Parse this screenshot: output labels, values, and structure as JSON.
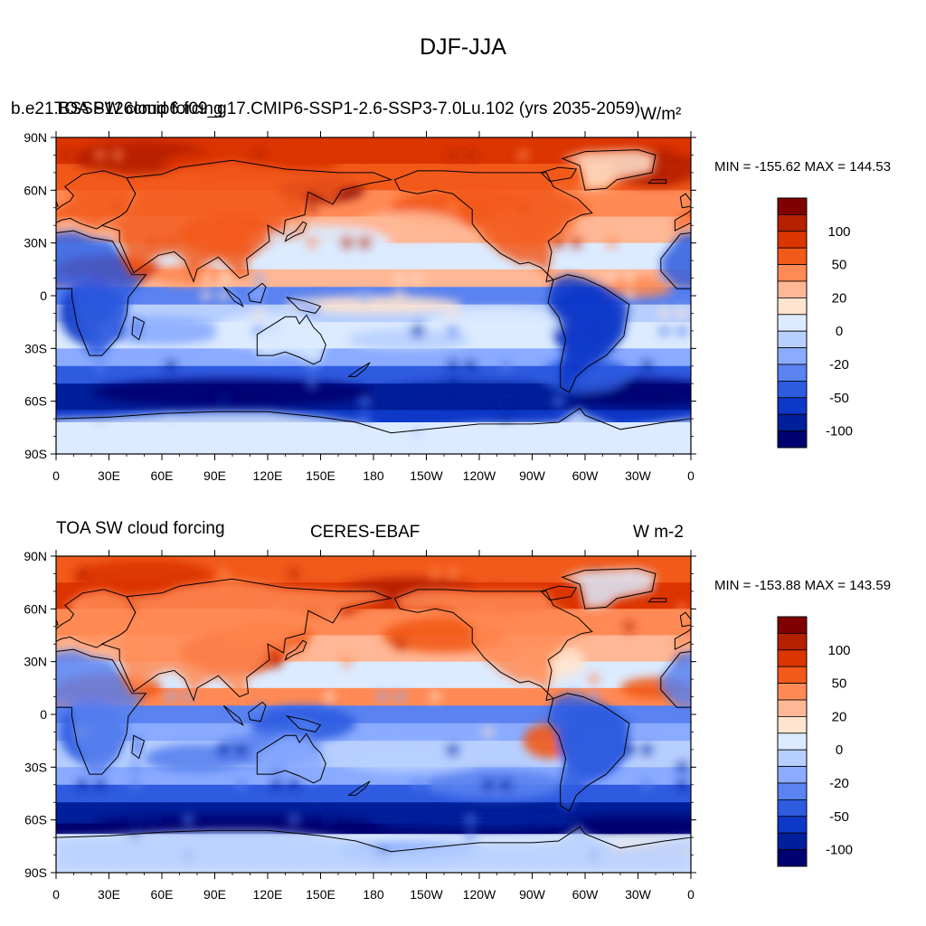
{
  "title": "DJF-JJA",
  "colors": {
    "levels": [
      "#800000",
      "#B52000",
      "#DC3500",
      "#F25A1A",
      "#FF8A55",
      "#FFB795",
      "#FFE4CF",
      "#DCEBFF",
      "#B7CFFF",
      "#8AABFF",
      "#5A82F0",
      "#2F5BE0",
      "#0E38C8",
      "#001F9A",
      "#000070"
    ],
    "ocean_top": [
      "#DC3500",
      "#FFE4CF",
      "#8AABFF",
      "#001F9A"
    ],
    "ocean_bottom": [
      "#F25A1A",
      "#FFB795",
      "#B7CFFF",
      "#000070"
    ]
  },
  "top_panel": {
    "left_title": "b.e21.BSSP126cmip6.f09_g17.CMIP6-SSP1-2.6-SSP3-7.0Lu.102 (yrs 2035-2059)",
    "overlay_title": "TOA SW cloud forcing",
    "units": "W/m²",
    "minmax": "MIN = -155.62 MAX = 144.53"
  },
  "bottom_panel": {
    "left_title": "TOA SW cloud forcing",
    "center_title": "CERES-EBAF",
    "units": "W m-2",
    "minmax": "MIN = -153.88 MAX = 143.59"
  },
  "axes": {
    "lat_labels": [
      "90N",
      "60N",
      "30N",
      "0",
      "30S",
      "60S",
      "90S"
    ],
    "lon_labels": [
      "0",
      "30E",
      "60E",
      "90E",
      "120E",
      "150E",
      "180",
      "150W",
      "120W",
      "90W",
      "60W",
      "30W",
      "0"
    ]
  },
  "colorbar": {
    "labels": [
      "100",
      "50",
      "20",
      "0",
      "-20",
      "-50",
      "-100"
    ]
  }
}
